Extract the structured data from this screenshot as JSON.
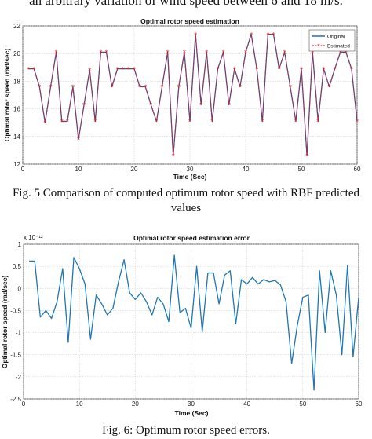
{
  "top_text": "an arbitrary variation of wind speed between 6 and 18 m/s.",
  "captions": {
    "fig5": "Fig. 5 Comparison of computed optimum rotor speed with RBF predicted values",
    "fig6": "Fig. 6: Optimum rotor speed errors."
  },
  "colors": {
    "original": "#1f5fb4",
    "estimated": "#d62020",
    "error": "#1f77b4"
  },
  "chart_data": [
    {
      "type": "line",
      "title": "Optimal rotor speed estimation",
      "xlabel": "Time (Sec)",
      "ylabel": "Optimal rotor speed (rad/sec)",
      "xlim": [
        0,
        60
      ],
      "ylim": [
        12,
        22
      ],
      "xticks": [
        0,
        10,
        20,
        30,
        40,
        50,
        60
      ],
      "yticks": [
        12,
        14,
        16,
        18,
        20,
        22
      ],
      "grid": true,
      "legend": "top-right",
      "x": [
        1,
        2,
        3,
        4,
        5,
        6,
        7,
        8,
        9,
        10,
        11,
        12,
        13,
        14,
        15,
        16,
        17,
        18,
        19,
        20,
        21,
        22,
        23,
        24,
        25,
        26,
        27,
        28,
        29,
        30,
        31,
        32,
        33,
        34,
        35,
        36,
        37,
        38,
        39,
        40,
        41,
        42,
        43,
        44,
        45,
        46,
        47,
        48,
        49,
        50,
        51,
        52,
        53,
        54,
        55,
        56,
        57,
        58,
        59,
        60
      ],
      "series": [
        {
          "name": "Original",
          "style": "solid",
          "values": [
            18.9,
            18.9,
            17.6,
            15.0,
            17.6,
            20.1,
            15.1,
            15.1,
            17.6,
            13.8,
            16.3,
            18.8,
            15.1,
            20.1,
            20.1,
            17.6,
            18.9,
            18.9,
            18.9,
            18.9,
            17.6,
            17.6,
            16.3,
            15.1,
            17.6,
            20.1,
            12.6,
            17.6,
            20.1,
            15.1,
            21.4,
            16.3,
            20.1,
            15.1,
            18.9,
            20.1,
            16.3,
            18.9,
            17.6,
            20.1,
            21.4,
            18.9,
            15.1,
            21.4,
            21.4,
            18.9,
            20.1,
            17.6,
            15.1,
            18.9,
            12.6,
            20.1,
            15.1,
            18.9,
            17.6,
            18.9,
            20.1,
            20.1,
            18.9,
            15.1
          ]
        },
        {
          "name": "Estimated",
          "style": "dashed-star",
          "values": [
            18.9,
            18.9,
            17.6,
            15.0,
            17.6,
            20.1,
            15.1,
            15.1,
            17.6,
            13.8,
            16.3,
            18.8,
            15.1,
            20.1,
            20.1,
            17.6,
            18.9,
            18.9,
            18.9,
            18.9,
            17.6,
            17.6,
            16.3,
            15.1,
            17.6,
            20.1,
            12.6,
            17.6,
            20.1,
            15.1,
            21.4,
            16.3,
            20.1,
            15.1,
            18.9,
            20.1,
            16.3,
            18.9,
            17.6,
            20.1,
            21.4,
            18.9,
            15.1,
            21.4,
            21.4,
            18.9,
            20.1,
            17.6,
            15.1,
            18.9,
            12.6,
            20.1,
            15.1,
            18.9,
            17.6,
            18.9,
            20.1,
            20.1,
            18.9,
            15.1
          ]
        }
      ]
    },
    {
      "type": "line",
      "title": "Optimal rotor speed estimation error",
      "xlabel": "Time (Sec)",
      "ylabel": "Optimal rotor speed (rad/sec)",
      "y_exponent": "x 10⁻¹²",
      "xlim": [
        0,
        60
      ],
      "ylim": [
        -2.5,
        1
      ],
      "xticks": [
        0,
        10,
        20,
        30,
        40,
        50,
        60
      ],
      "yticks": [
        -2.5,
        -2,
        -1.5,
        -1,
        -0.5,
        0,
        0.5,
        1
      ],
      "grid": true,
      "x": [
        1,
        2,
        3,
        4,
        5,
        6,
        7,
        8,
        9,
        10,
        11,
        12,
        13,
        14,
        15,
        16,
        17,
        18,
        19,
        20,
        21,
        22,
        23,
        24,
        25,
        26,
        27,
        28,
        29,
        30,
        31,
        32,
        33,
        34,
        35,
        36,
        37,
        38,
        39,
        40,
        41,
        42,
        43,
        44,
        45,
        46,
        47,
        48,
        49,
        50,
        51,
        52,
        53,
        54,
        55,
        56,
        57,
        58,
        59,
        60
      ],
      "series": [
        {
          "name": "",
          "values": [
            0.62,
            0.62,
            -0.65,
            -0.5,
            -0.68,
            -0.3,
            0.45,
            -1.22,
            0.7,
            0.45,
            0.1,
            -1.15,
            -0.15,
            -0.35,
            -0.6,
            -0.45,
            0.15,
            0.65,
            -0.1,
            -0.25,
            -0.1,
            -0.3,
            -0.6,
            -0.2,
            -0.35,
            -0.75,
            0.75,
            -0.55,
            -0.45,
            -0.9,
            0.5,
            -0.98,
            0.35,
            0.35,
            -0.35,
            0.3,
            0.4,
            -0.8,
            0.2,
            0.1,
            0.25,
            0.1,
            0.2,
            0.15,
            0.18,
            0.08,
            -0.3,
            -1.7,
            -0.85,
            -0.2,
            -0.15,
            -2.3,
            0.4,
            -1.0,
            0.4,
            -0.15,
            -1.5,
            0.52,
            -1.55,
            -0.2
          ]
        }
      ]
    }
  ]
}
